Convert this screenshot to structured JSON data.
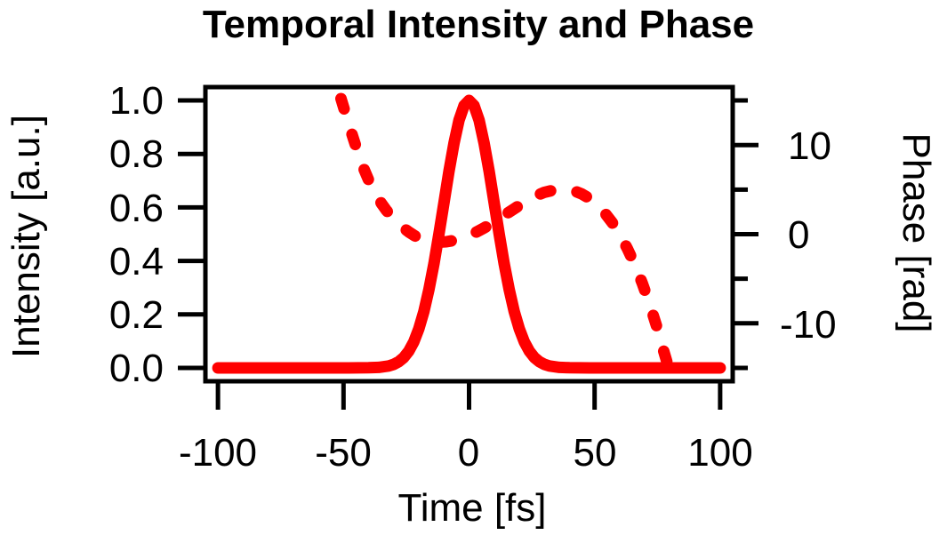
{
  "title": "Temporal Intensity and Phase",
  "colors": {
    "curve": "#ff0000",
    "axis": "#000000",
    "background": "#ffffff"
  },
  "chart_data": {
    "type": "line",
    "title": "Temporal Intensity and Phase",
    "xlabel": "Time [fs]",
    "ylabel_left": "Intensity [a.u.]",
    "ylabel_right": "Phase [rad]",
    "xlim": [
      -105,
      105
    ],
    "ylim_left": [
      -0.05,
      1.05
    ],
    "ylim_right": [
      -16.5,
      16.5
    ],
    "grid": false,
    "legend": "none",
    "x_ticks": [
      -100,
      -50,
      0,
      50,
      100
    ],
    "x_tick_labels": [
      "-100",
      "-50",
      "0",
      "50",
      "100"
    ],
    "y_ticks_left": [
      1.0,
      0.8,
      0.6,
      0.4,
      0.2,
      0.0
    ],
    "y_tick_labels_left": [
      "1.0",
      "0.8",
      "0.6",
      "0.4",
      "0.2",
      "0.0"
    ],
    "y_ticks_right_major": [
      10,
      0,
      -10
    ],
    "y_tick_labels_right": [
      "10",
      "0",
      "-10"
    ],
    "y_ticks_right_minor": [
      15,
      5,
      -5,
      -15
    ],
    "series": [
      {
        "name": "intensity",
        "axis": "left",
        "line_style": "solid",
        "color": "#ff0000",
        "shape": "gaussian, FWHM 24 fs, centered at 0 fs, peak 1.0",
        "points": [
          [
            -100,
            0
          ],
          [
            -88,
            0
          ],
          [
            -76,
            0
          ],
          [
            -64,
            0
          ],
          [
            -55,
            0
          ],
          [
            -48,
            0
          ],
          [
            -44,
            0.0001
          ],
          [
            -40,
            0.0005
          ],
          [
            -36,
            0.002
          ],
          [
            -32,
            0.0072
          ],
          [
            -30,
            0.0132
          ],
          [
            -28,
            0.023
          ],
          [
            -26,
            0.0387
          ],
          [
            -24,
            0.0626
          ],
          [
            -22,
            0.0975
          ],
          [
            -20,
            0.146
          ],
          [
            -18,
            0.2104
          ],
          [
            -16,
            0.2918
          ],
          [
            -14,
            0.3894
          ],
          [
            -12,
            0.5
          ],
          [
            -10,
            0.6181
          ],
          [
            -8,
            0.7349
          ],
          [
            -6,
            0.8408
          ],
          [
            -4,
            0.9259
          ],
          [
            -2,
            0.9809
          ],
          [
            0,
            1.0
          ],
          [
            2,
            0.9809
          ],
          [
            4,
            0.9259
          ],
          [
            6,
            0.8408
          ],
          [
            8,
            0.7349
          ],
          [
            10,
            0.6181
          ],
          [
            12,
            0.5
          ],
          [
            14,
            0.3894
          ],
          [
            16,
            0.2918
          ],
          [
            18,
            0.2104
          ],
          [
            20,
            0.146
          ],
          [
            22,
            0.0975
          ],
          [
            24,
            0.0626
          ],
          [
            26,
            0.0387
          ],
          [
            28,
            0.023
          ],
          [
            30,
            0.0132
          ],
          [
            32,
            0.0072
          ],
          [
            36,
            0.002
          ],
          [
            40,
            0.0005
          ],
          [
            44,
            0.0001
          ],
          [
            48,
            0
          ],
          [
            55,
            0
          ],
          [
            64,
            0
          ],
          [
            76,
            0
          ],
          [
            88,
            0
          ],
          [
            100,
            0
          ]
        ]
      },
      {
        "name": "phase",
        "axis": "right",
        "line_style": "dashed",
        "color": "#ff0000",
        "shape": "descends from +15 rad at -51 fs, shallow minimum ~-0.9 rad near -12 fs, local maximum ~+5.0 rad near +38 fs, plunges to -15 rad at +79 fs",
        "points": [
          [
            -51,
            15.2
          ],
          [
            -48,
            12.4
          ],
          [
            -45,
            9.8
          ],
          [
            -42,
            7.4
          ],
          [
            -39,
            5.4
          ],
          [
            -36,
            3.9
          ],
          [
            -33,
            2.7
          ],
          [
            -30,
            1.7
          ],
          [
            -27,
            0.9
          ],
          [
            -24,
            0.25
          ],
          [
            -21,
            -0.3
          ],
          [
            -18,
            -0.65
          ],
          [
            -15,
            -0.85
          ],
          [
            -12,
            -0.9
          ],
          [
            -9,
            -0.85
          ],
          [
            -6,
            -0.7
          ],
          [
            -3,
            -0.45
          ],
          [
            0,
            -0.15
          ],
          [
            3,
            0.25
          ],
          [
            6,
            0.7
          ],
          [
            9,
            1.2
          ],
          [
            12,
            1.75
          ],
          [
            15,
            2.3
          ],
          [
            18,
            2.85
          ],
          [
            21,
            3.4
          ],
          [
            24,
            3.9
          ],
          [
            27,
            4.35
          ],
          [
            30,
            4.7
          ],
          [
            33,
            4.9
          ],
          [
            36,
            5.0
          ],
          [
            39,
            5.0
          ],
          [
            42,
            4.85
          ],
          [
            45,
            4.5
          ],
          [
            48,
            4.0
          ],
          [
            51,
            3.3
          ],
          [
            54,
            2.4
          ],
          [
            57,
            1.3
          ],
          [
            60,
            0.0
          ],
          [
            63,
            -1.6
          ],
          [
            66,
            -3.4
          ],
          [
            69,
            -5.5
          ],
          [
            72,
            -7.9
          ],
          [
            75,
            -10.6
          ],
          [
            77,
            -12.6
          ],
          [
            79.5,
            -15.0
          ]
        ]
      }
    ]
  }
}
